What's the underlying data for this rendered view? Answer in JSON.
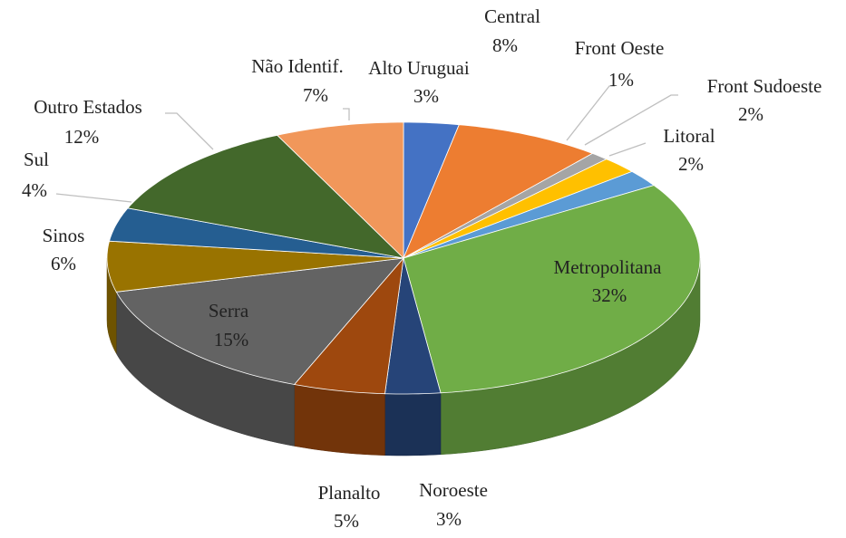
{
  "chart_data": {
    "type": "pie",
    "categories": [
      "Alto Uruguai",
      "Central",
      "Front Oeste",
      "Front Sudoeste",
      "Litoral",
      "Metropolitana",
      "Noroeste",
      "Planalto",
      "Serra",
      "Sinos",
      "Sul",
      "Outro Estados",
      "Não Identif."
    ],
    "values": [
      3,
      8,
      1,
      2,
      2,
      32,
      3,
      5,
      15,
      6,
      4,
      12,
      7
    ],
    "value_labels": [
      "3%",
      "8%",
      "1%",
      "2%",
      "2%",
      "32%",
      "3%",
      "5%",
      "15%",
      "6%",
      "4%",
      "12%",
      "7%"
    ],
    "colors": [
      "#4472c4",
      "#ed7d31",
      "#a5a5a5",
      "#ffc000",
      "#5b9bd5",
      "#70ad47",
      "#264478",
      "#9e480e",
      "#636363",
      "#997300",
      "#255e91",
      "#43682b",
      "#f1975a"
    ]
  }
}
